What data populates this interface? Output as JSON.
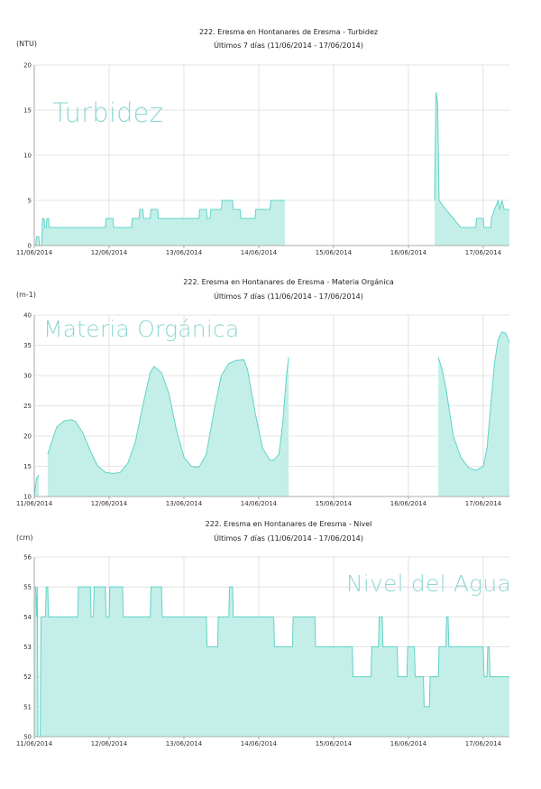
{
  "charts": [
    {
      "title": "222. Eresma en Hontanares de Eresma  -  Turbidez",
      "subtitle": "Últimos 7 días (11/06/2014 - 17/06/2014)",
      "unit": "(NTU)",
      "watermark": "Turbidez"
    },
    {
      "title": "222. Eresma en Hontanares de Eresma  -  Materia Orgánica",
      "subtitle": "Últimos 7 días (11/06/2014 - 17/06/2014)",
      "unit": "(m-1)",
      "watermark": "Materia Orgánica"
    },
    {
      "title": "222. Eresma en Hontanares de Eresma  -  Nivel",
      "subtitle": "Últimos 7 días (11/06/2014 - 17/06/2014)",
      "unit": "(cm)",
      "watermark": "Nivel del Agua"
    }
  ],
  "colors": {
    "fill": "#c4efe9",
    "line": "#5fd3c6",
    "grid": "#dcdcdc",
    "axis": "#999999",
    "watermark": "#8fd8d1"
  },
  "chart_data": [
    {
      "type": "area",
      "xlabel": "",
      "ylabel": "(NTU)",
      "xlim": [
        0,
        6.35
      ],
      "ylim": [
        0,
        20
      ],
      "yticks": [
        0,
        5,
        10,
        15,
        20
      ],
      "xtick_labels": [
        "11/06/2014",
        "12/06/2014",
        "13/06/2014",
        "14/06/2014",
        "15/06/2014",
        "16/06/2014",
        "17/06/2014"
      ],
      "series": [
        {
          "segments": [
            [
              [
                0,
                0
              ],
              [
                0.02,
                0
              ],
              [
                0.03,
                1
              ],
              [
                0.06,
                1
              ],
              [
                0.07,
                0
              ],
              [
                0.1,
                0
              ],
              [
                0.11,
                3
              ],
              [
                0.13,
                3
              ],
              [
                0.14,
                2
              ],
              [
                0.16,
                2
              ],
              [
                0.17,
                3
              ],
              [
                0.19,
                3
              ],
              [
                0.2,
                2
              ],
              [
                0.95,
                2
              ],
              [
                0.96,
                3
              ],
              [
                1.05,
                3
              ],
              [
                1.06,
                2
              ],
              [
                1.3,
                2
              ],
              [
                1.31,
                3
              ],
              [
                1.4,
                3
              ],
              [
                1.41,
                4
              ],
              [
                1.45,
                4
              ],
              [
                1.46,
                3
              ],
              [
                1.55,
                3
              ],
              [
                1.56,
                4
              ],
              [
                1.65,
                4
              ],
              [
                1.66,
                3
              ],
              [
                2.2,
                3
              ],
              [
                2.21,
                4
              ],
              [
                2.3,
                4
              ],
              [
                2.31,
                3
              ],
              [
                2.35,
                3
              ],
              [
                2.36,
                4
              ],
              [
                2.5,
                4
              ],
              [
                2.51,
                5
              ],
              [
                2.65,
                5
              ],
              [
                2.66,
                4
              ],
              [
                2.75,
                4
              ],
              [
                2.76,
                3
              ],
              [
                2.95,
                3
              ],
              [
                2.96,
                4
              ],
              [
                3.15,
                4
              ],
              [
                3.16,
                5
              ],
              [
                3.35,
                5
              ]
            ],
            [
              [
                5.35,
                5
              ],
              [
                5.36,
                12
              ],
              [
                5.37,
                17
              ],
              [
                5.39,
                16
              ],
              [
                5.41,
                5
              ],
              [
                5.5,
                4
              ],
              [
                5.6,
                3
              ],
              [
                5.7,
                2
              ],
              [
                5.9,
                2
              ],
              [
                5.91,
                3
              ],
              [
                6.0,
                3
              ],
              [
                6.01,
                2
              ],
              [
                6.1,
                2
              ],
              [
                6.11,
                3
              ],
              [
                6.15,
                4
              ],
              [
                6.2,
                5
              ],
              [
                6.22,
                4
              ],
              [
                6.25,
                5
              ],
              [
                6.28,
                4
              ],
              [
                6.35,
                4
              ]
            ]
          ]
        }
      ]
    },
    {
      "type": "area",
      "xlabel": "",
      "ylabel": "(m-1)",
      "xlim": [
        0,
        6.35
      ],
      "ylim": [
        10,
        40
      ],
      "yticks": [
        10,
        15,
        20,
        25,
        30,
        35,
        40
      ],
      "xtick_labels": [
        "11/06/2014",
        "12/06/2014",
        "13/06/2014",
        "14/06/2014",
        "15/06/2014",
        "16/06/2014",
        "17/06/2014"
      ],
      "series": [
        {
          "segments": [
            [
              [
                0.0,
                10.2
              ],
              [
                0.03,
                13.0
              ],
              [
                0.06,
                13.6
              ]
            ],
            [
              [
                0.18,
                17.0
              ],
              [
                0.22,
                18.5
              ],
              [
                0.3,
                21.5
              ],
              [
                0.4,
                22.5
              ],
              [
                0.5,
                22.7
              ],
              [
                0.55,
                22.4
              ],
              [
                0.65,
                20.5
              ],
              [
                0.75,
                17.5
              ],
              [
                0.85,
                15.0
              ],
              [
                0.95,
                14.0
              ],
              [
                1.05,
                13.8
              ],
              [
                1.15,
                14.0
              ],
              [
                1.25,
                15.5
              ],
              [
                1.35,
                19.0
              ],
              [
                1.45,
                25.0
              ],
              [
                1.55,
                30.5
              ],
              [
                1.6,
                31.5
              ],
              [
                1.7,
                30.5
              ],
              [
                1.8,
                27.0
              ],
              [
                1.9,
                21.0
              ],
              [
                2.0,
                16.5
              ],
              [
                2.1,
                15.0
              ],
              [
                2.2,
                14.8
              ],
              [
                2.3,
                17.0
              ],
              [
                2.4,
                24.0
              ],
              [
                2.5,
                30.0
              ],
              [
                2.6,
                32.0
              ],
              [
                2.7,
                32.5
              ],
              [
                2.8,
                32.6
              ],
              [
                2.85,
                31.0
              ],
              [
                2.95,
                24.0
              ],
              [
                3.05,
                18.0
              ],
              [
                3.15,
                16.0
              ],
              [
                3.2,
                16.0
              ],
              [
                3.27,
                17.0
              ],
              [
                3.32,
                22.0
              ],
              [
                3.37,
                30.0
              ],
              [
                3.4,
                33.0
              ]
            ],
            [
              [
                5.4,
                33.0
              ],
              [
                5.45,
                31.0
              ],
              [
                5.5,
                28.0
              ],
              [
                5.55,
                24.0
              ],
              [
                5.6,
                20.0
              ],
              [
                5.7,
                16.5
              ],
              [
                5.8,
                14.8
              ],
              [
                5.9,
                14.3
              ],
              [
                6.0,
                15.0
              ],
              [
                6.05,
                18.0
              ],
              [
                6.1,
                25.0
              ],
              [
                6.15,
                32.0
              ],
              [
                6.2,
                36.0
              ],
              [
                6.25,
                37.2
              ],
              [
                6.3,
                37.0
              ],
              [
                6.35,
                35.5
              ]
            ]
          ]
        }
      ]
    },
    {
      "type": "area",
      "xlabel": "",
      "ylabel": "(cm)",
      "xlim": [
        0,
        6.35
      ],
      "ylim": [
        50,
        56
      ],
      "yticks": [
        50,
        51,
        52,
        53,
        54,
        55,
        56
      ],
      "xtick_labels": [
        "11/06/2014",
        "12/06/2014",
        "13/06/2014",
        "14/06/2014",
        "15/06/2014",
        "16/06/2014",
        "17/06/2014"
      ],
      "series": [
        {
          "segments": [
            [
              [
                0,
                55
              ],
              [
                0.02,
                55
              ],
              [
                0.03,
                54
              ],
              [
                0.04,
                55
              ],
              [
                0.05,
                50
              ],
              [
                0.08,
                50
              ],
              [
                0.09,
                54
              ],
              [
                0.15,
                54
              ],
              [
                0.16,
                55
              ],
              [
                0.18,
                55
              ],
              [
                0.19,
                54
              ],
              [
                0.58,
                54
              ],
              [
                0.59,
                55
              ],
              [
                0.75,
                55
              ],
              [
                0.76,
                54
              ],
              [
                0.79,
                54
              ],
              [
                0.8,
                55
              ],
              [
                0.95,
                55
              ],
              [
                0.96,
                54
              ],
              [
                1.0,
                54
              ],
              [
                1.01,
                55
              ],
              [
                1.18,
                55
              ],
              [
                1.19,
                54
              ],
              [
                1.55,
                54
              ],
              [
                1.56,
                55
              ],
              [
                1.7,
                55
              ],
              [
                1.71,
                54
              ],
              [
                2.3,
                54
              ],
              [
                2.31,
                53
              ],
              [
                2.45,
                53
              ],
              [
                2.46,
                54
              ],
              [
                2.6,
                54
              ],
              [
                2.61,
                55
              ],
              [
                2.65,
                55
              ],
              [
                2.66,
                54
              ],
              [
                3.2,
                54
              ],
              [
                3.21,
                53
              ],
              [
                3.45,
                53
              ],
              [
                3.46,
                54
              ],
              [
                3.75,
                54
              ],
              [
                3.76,
                53
              ],
              [
                4.25,
                53
              ],
              [
                4.26,
                52
              ],
              [
                4.5,
                52
              ],
              [
                4.51,
                53
              ],
              [
                4.6,
                53
              ],
              [
                4.61,
                54
              ],
              [
                4.65,
                54
              ],
              [
                4.66,
                53
              ],
              [
                4.85,
                53
              ],
              [
                4.86,
                52
              ],
              [
                4.98,
                52
              ],
              [
                4.99,
                53
              ],
              [
                5.08,
                53
              ],
              [
                5.09,
                52
              ],
              [
                5.2,
                52
              ],
              [
                5.21,
                51
              ],
              [
                5.28,
                51
              ],
              [
                5.29,
                52
              ],
              [
                5.4,
                52
              ],
              [
                5.41,
                53
              ],
              [
                5.5,
                53
              ],
              [
                5.51,
                54
              ],
              [
                5.53,
                54
              ],
              [
                5.54,
                53
              ],
              [
                6.0,
                53
              ],
              [
                6.01,
                52
              ],
              [
                6.05,
                52
              ],
              [
                6.06,
                53
              ],
              [
                6.08,
                53
              ],
              [
                6.09,
                52
              ],
              [
                6.35,
                52
              ]
            ]
          ]
        }
      ]
    }
  ]
}
